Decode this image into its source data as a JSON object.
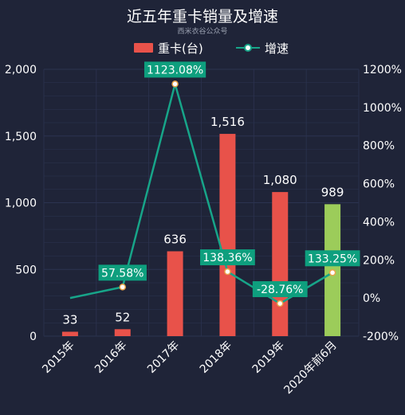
{
  "chart_data": {
    "type": "bar",
    "title": "近五年重卡销量及增速",
    "subtitle": "西米衣谷公众号",
    "categories": [
      "2015年",
      "2016年",
      "2017年",
      "2018年",
      "2019年",
      "2020年前6月"
    ],
    "series": [
      {
        "name": "重卡(台)",
        "type": "bar",
        "axis": "left",
        "values": [
          33,
          52,
          636,
          1516,
          1080,
          989
        ],
        "value_labels": [
          "33",
          "52",
          "636",
          "1,516",
          "1,080",
          "989"
        ],
        "colors": [
          "#e8524a",
          "#e8524a",
          "#e8524a",
          "#e8524a",
          "#e8524a",
          "#9ccc5a"
        ]
      },
      {
        "name": "增速",
        "type": "line",
        "axis": "right",
        "values": [
          0,
          57.58,
          1123.08,
          138.36,
          -28.76,
          133.25
        ],
        "value_labels": [
          null,
          "57.58%",
          "1123.08%",
          "138.36%",
          "-28.76%",
          "133.25%"
        ],
        "color": "#17a589"
      }
    ],
    "y_left": {
      "ylim": [
        0,
        2000
      ],
      "ticks": [
        "0",
        "500",
        "1,000",
        "1,500",
        "2,000"
      ]
    },
    "y_right": {
      "ylim": [
        -200,
        1200
      ],
      "ticks": [
        "-200%",
        "0%",
        "200%",
        "400%",
        "600%",
        "800%",
        "1000%",
        "1200%"
      ]
    },
    "legend_position": "top-center",
    "grid": true,
    "colors": {
      "background": "#1f2438",
      "bar": "#e8524a",
      "bar_highlight": "#9ccc5a",
      "line": "#17a589",
      "label_box": "#0e9f7e",
      "grid": "#2b3350"
    }
  }
}
